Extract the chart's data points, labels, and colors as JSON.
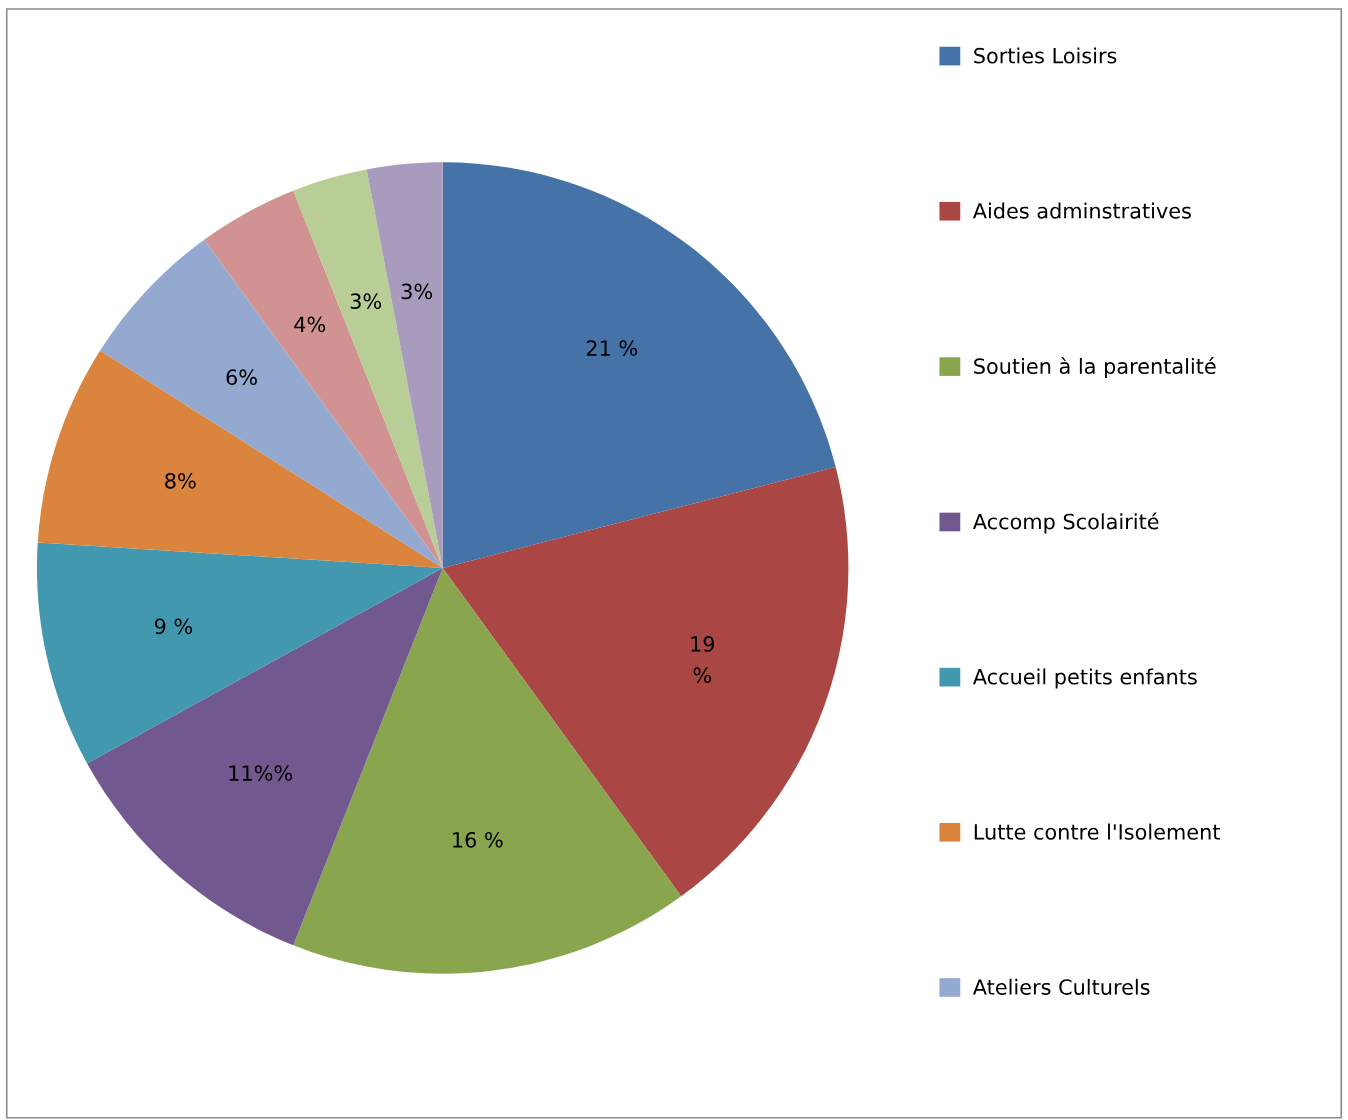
{
  "chart_data": {
    "type": "pie",
    "categories": [
      "Sorties Loisirs",
      "Aides adminstratives",
      "Soutien à la parentalité",
      "Accomp Scolairité",
      "Accueil petits enfants",
      "Lutte contre l'Isolement",
      "Ateliers Culturels",
      null,
      null,
      null
    ],
    "values": [
      21,
      19,
      16,
      11,
      9,
      8,
      6,
      4,
      3,
      3
    ],
    "value_labels": [
      "21 %",
      "19\n%",
      "16 %",
      "11%%",
      "9 %",
      "8%",
      "6%",
      "4%",
      "3%",
      "3%"
    ],
    "colors": [
      "#4572a7",
      "#aa4643",
      "#89a54e",
      "#71588f",
      "#4198af",
      "#db843d",
      "#93a9cf",
      "#d19392",
      "#b9cd96",
      "#a99bbd"
    ],
    "legend": "right"
  }
}
